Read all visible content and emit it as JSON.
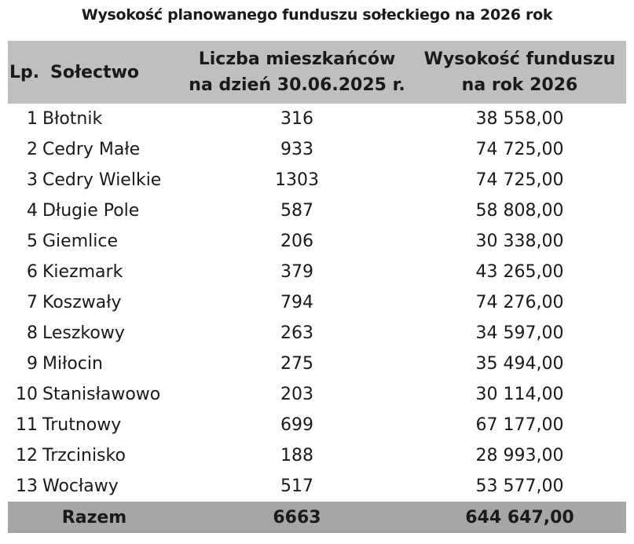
{
  "title": "Wysokość planowanego funduszu sołeckiego na 2026 rok",
  "header": {
    "lp": "Lp.",
    "solectwo": "Sołectwo",
    "population_line1": "Liczba mieszkańców",
    "population_line2": "na dzień 30.06.2025 r.",
    "fund_line1": "Wysokość funduszu",
    "fund_line2": "na rok 2026"
  },
  "rows": [
    {
      "lp": "1",
      "name": "Błotnik",
      "population": "316",
      "fund": "38 558,00"
    },
    {
      "lp": "2",
      "name": "Cedry Małe",
      "population": "933",
      "fund": "74 725,00"
    },
    {
      "lp": "3",
      "name": "Cedry Wielkie",
      "population": "1303",
      "fund": "74 725,00"
    },
    {
      "lp": "4",
      "name": "Długie Pole",
      "population": "587",
      "fund": "58 808,00"
    },
    {
      "lp": "5",
      "name": "Giemlice",
      "population": "206",
      "fund": "30 338,00"
    },
    {
      "lp": "6",
      "name": "Kiezmark",
      "population": "379",
      "fund": "43 265,00"
    },
    {
      "lp": "7",
      "name": "Koszwały",
      "population": "794",
      "fund": "74 276,00"
    },
    {
      "lp": "8",
      "name": "Leszkowy",
      "population": "263",
      "fund": "34 597,00"
    },
    {
      "lp": "9",
      "name": "Miłocin",
      "population": "275",
      "fund": "35 494,00"
    },
    {
      "lp": "10",
      "name": "Stanisławowo",
      "population": "203",
      "fund": "30 114,00"
    },
    {
      "lp": "11",
      "name": "Trutnowy",
      "population": "699",
      "fund": "67 177,00"
    },
    {
      "lp": "12",
      "name": "Trzcinisko",
      "population": "188",
      "fund": "28 993,00"
    },
    {
      "lp": "13",
      "name": "Wocławy",
      "population": "517",
      "fund": "53 577,00"
    }
  ],
  "total": {
    "label": "Razem",
    "population": "6663",
    "fund": "644 647,00"
  },
  "colors": {
    "header_bg": "#bfbfbf",
    "total_bg": "#a6a6a6",
    "text": "#1a1a1a"
  }
}
